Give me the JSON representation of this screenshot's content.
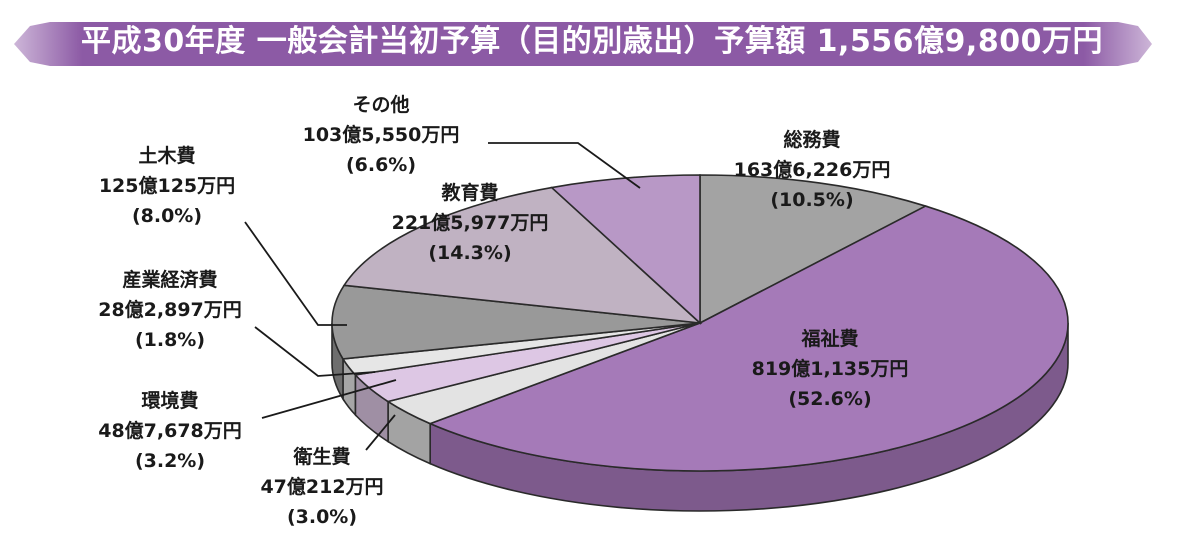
{
  "chart_data": {
    "type": "pie",
    "title": "平成30年度 一般会計当初予算（目的別歳出）予算額 1,556億9,800万円",
    "slices": [
      {
        "name": "総務費",
        "amount": "163億6,226万円",
        "pct_label": "(10.5%)",
        "value": 10.5,
        "color": "#a3a3a3"
      },
      {
        "name": "福祉費",
        "amount": "819億1,135万円",
        "pct_label": "(52.6%)",
        "value": 52.6,
        "color": "#a57ab8"
      },
      {
        "name": "衛生費",
        "amount": "47億212万円",
        "pct_label": "(3.0%)",
        "value": 3.0,
        "color": "#e3e3e3"
      },
      {
        "name": "環境費",
        "amount": "48億7,678万円",
        "pct_label": "(3.2%)",
        "value": 3.2,
        "color": "#ddc7e4"
      },
      {
        "name": "産業経済費",
        "amount": "28億2,897万円",
        "pct_label": "(1.8%)",
        "value": 1.8,
        "color": "#e6e6e6"
      },
      {
        "name": "土木費",
        "amount": "125億125万円",
        "pct_label": "(8.0%)",
        "value": 8.0,
        "color": "#999999"
      },
      {
        "name": "教育費",
        "amount": "221億5,977万円",
        "pct_label": "(14.3%)",
        "value": 14.3,
        "color": "#c0b2c2"
      },
      {
        "name": "その他",
        "amount": "103億5,550万円",
        "pct_label": "(6.6%)",
        "value": 6.6,
        "color": "#b898c6"
      }
    ],
    "colors": {
      "banner": "#8c5aa5",
      "side_default": "#707070",
      "side_welfare": "#7d5a8c"
    }
  }
}
